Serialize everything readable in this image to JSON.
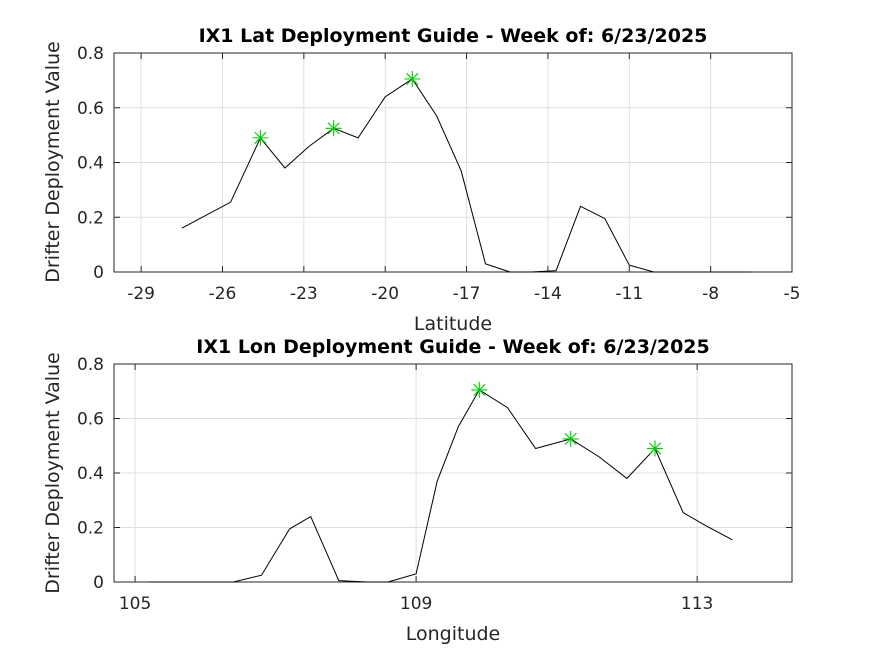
{
  "chart_data": [
    {
      "type": "line",
      "title": "IX1 Lat Deployment Guide - Week of: 6/23/2025",
      "xlabel": "Latitude",
      "ylabel": "Drifter Deployment Value",
      "xlim": [
        -30,
        -5
      ],
      "ylim": [
        0,
        0.8
      ],
      "xticks": [
        -29,
        -26,
        -23,
        -20,
        -17,
        -14,
        -11,
        -8,
        -5
      ],
      "yticks": [
        0,
        0.2,
        0.4,
        0.6,
        0.8
      ],
      "grid": true,
      "series": [
        {
          "line_color": "#000000",
          "x": [
            -27.5,
            -25.7,
            -24.6,
            -23.7,
            -22.8,
            -21.9,
            -21.0,
            -20.0,
            -19.0,
            -18.1,
            -17.2,
            -16.3,
            -15.4,
            -14.6,
            -13.7,
            -12.8,
            -11.9,
            -11.0,
            -10.1,
            -9.2,
            -8.3,
            -7.4,
            -6.5
          ],
          "y": [
            0.16,
            0.255,
            0.49,
            0.38,
            0.46,
            0.525,
            0.49,
            0.64,
            0.705,
            0.57,
            0.37,
            0.03,
            0.0,
            0.0,
            0.005,
            0.24,
            0.195,
            0.025,
            0.0,
            0.0,
            0.0,
            0.0,
            0.0
          ]
        }
      ],
      "highlights": {
        "marker_color": "#00cc00",
        "x": [
          -24.6,
          -21.9,
          -19.0
        ],
        "y": [
          0.49,
          0.525,
          0.705
        ]
      }
    },
    {
      "type": "line",
      "title": "IX1 Lon Deployment Guide - Week of: 6/23/2025",
      "xlabel": "Longitude",
      "ylabel": "Drifter Deployment Value",
      "xlim": [
        104.7,
        114.35
      ],
      "ylim": [
        0,
        0.8
      ],
      "xticks": [
        105,
        109,
        113
      ],
      "yticks": [
        0,
        0.2,
        0.4,
        0.6,
        0.8
      ],
      "grid": true,
      "series": [
        {
          "line_color": "#000000",
          "x": [
            105.2,
            105.6,
            106.0,
            106.4,
            106.8,
            107.2,
            107.5,
            107.9,
            108.3,
            108.6,
            109.0,
            109.3,
            109.6,
            109.9,
            110.3,
            110.7,
            111.2,
            111.6,
            112.0,
            112.4,
            112.8,
            113.1,
            113.5
          ],
          "y": [
            0.0,
            0.0,
            0.0,
            0.0,
            0.025,
            0.195,
            0.24,
            0.005,
            0.0,
            0.0,
            0.03,
            0.37,
            0.57,
            0.705,
            0.64,
            0.49,
            0.525,
            0.46,
            0.38,
            0.49,
            0.255,
            0.21,
            0.155
          ]
        }
      ],
      "highlights": {
        "marker_color": "#00cc00",
        "x": [
          109.9,
          111.2,
          112.4
        ],
        "y": [
          0.705,
          0.525,
          0.49
        ]
      }
    }
  ]
}
